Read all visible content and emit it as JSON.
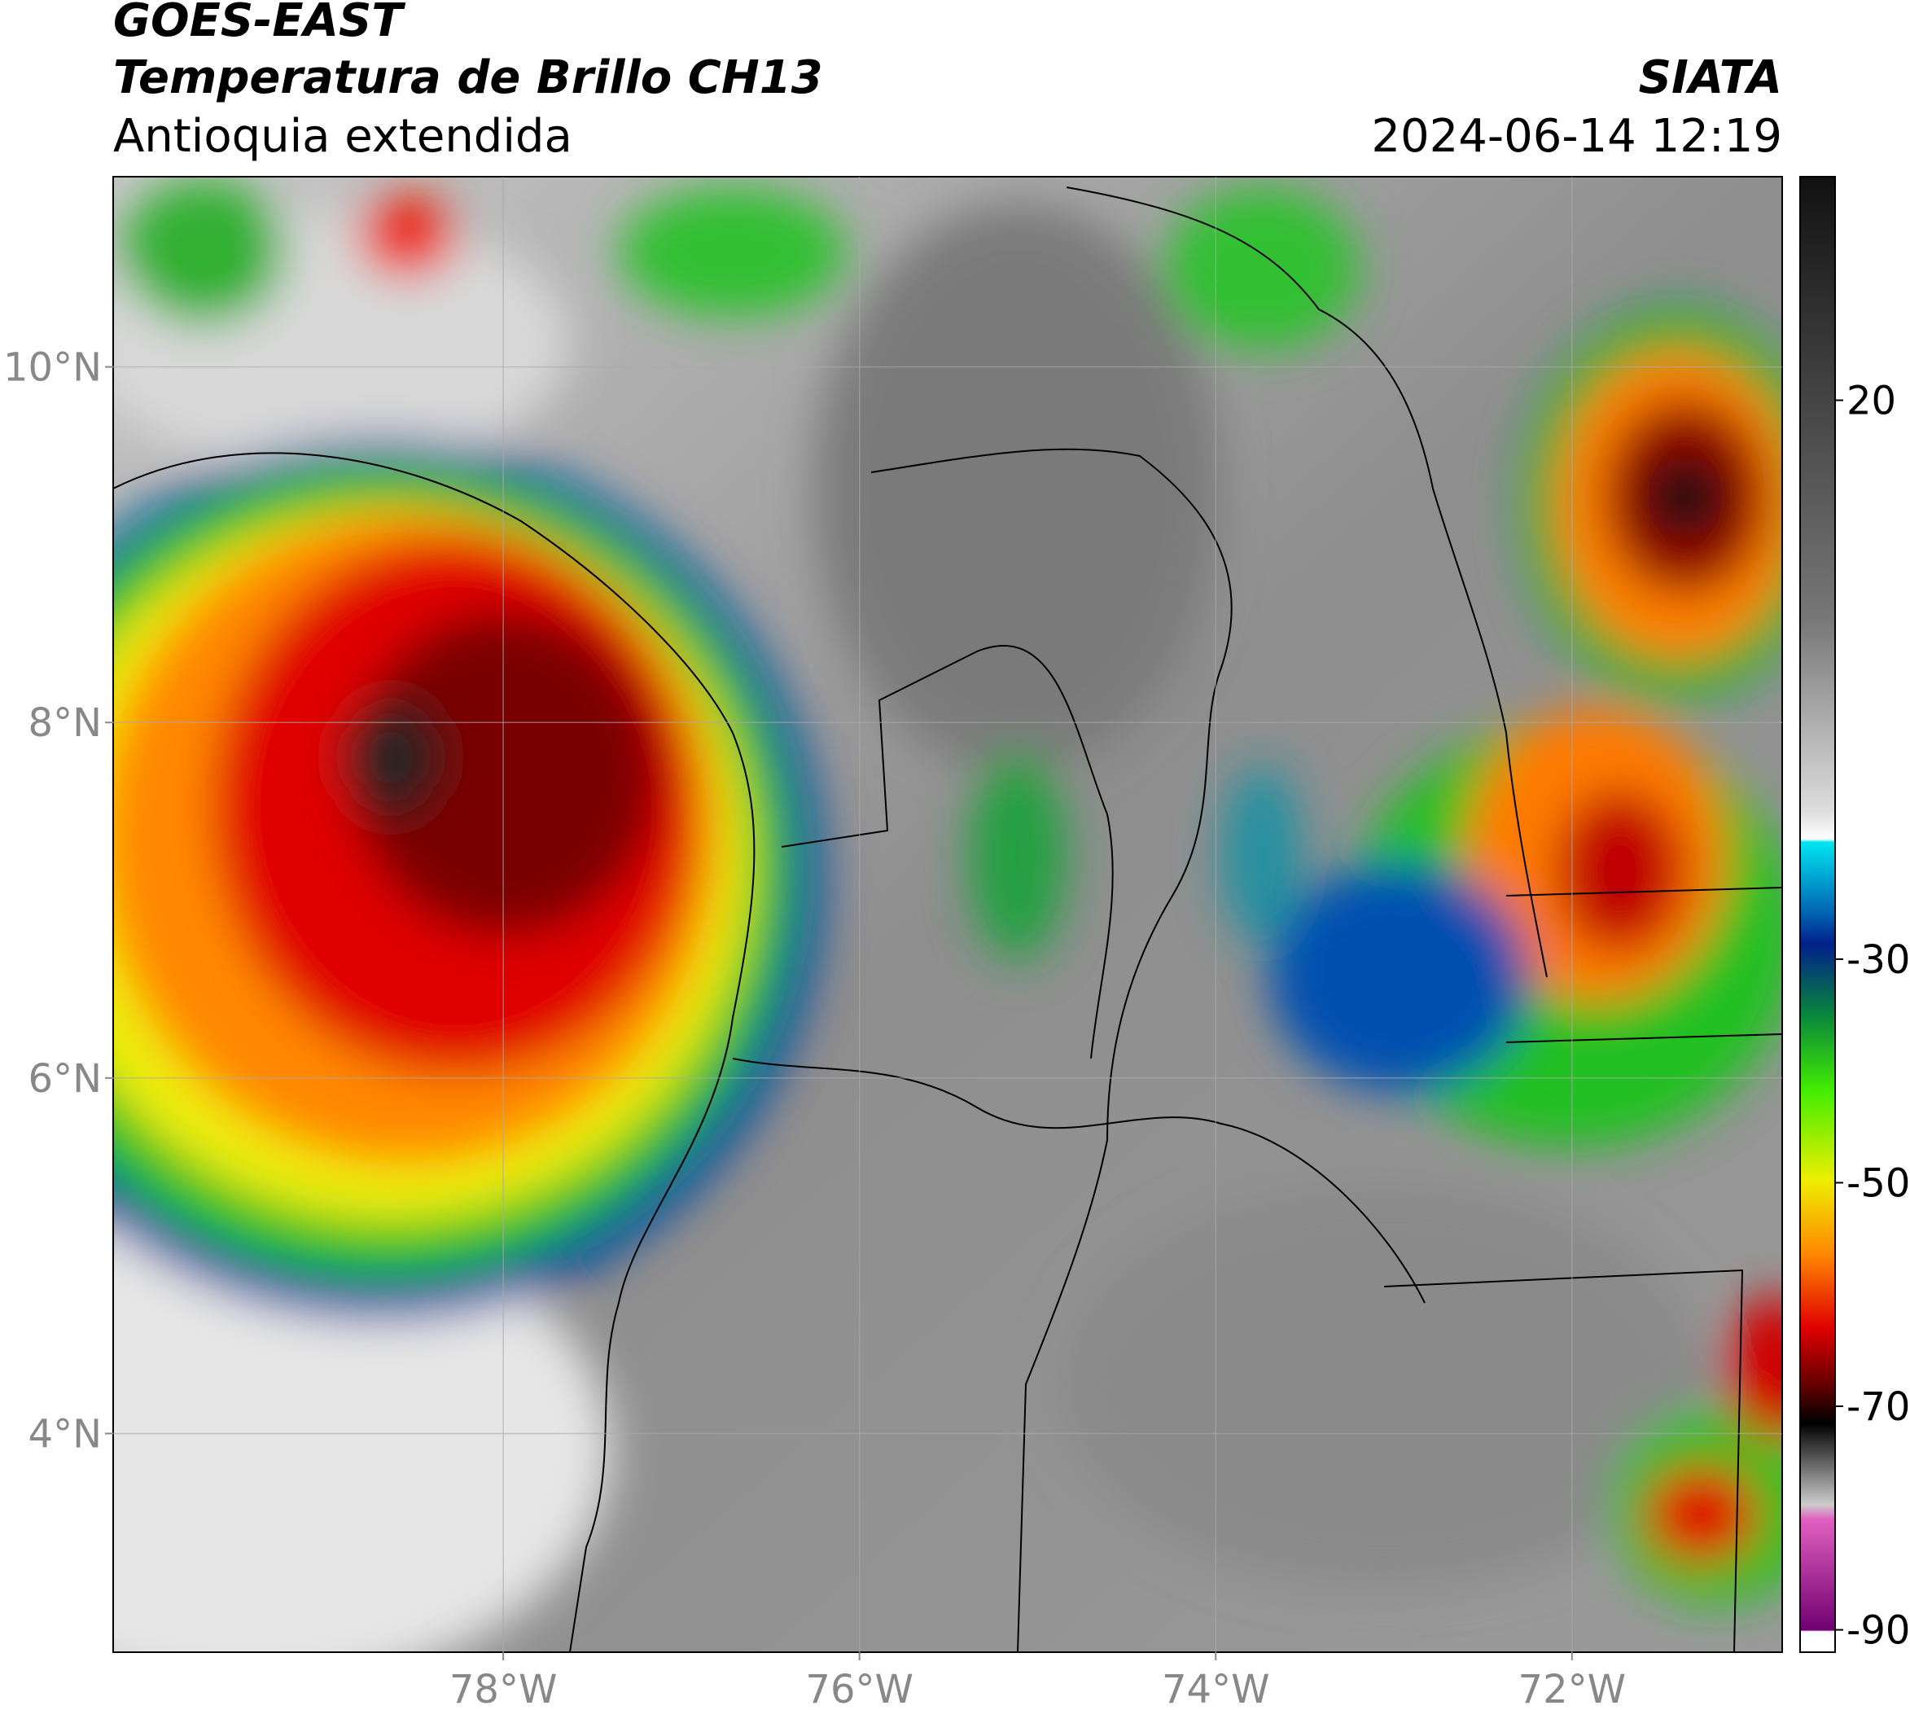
{
  "header": {
    "satellite": "GOES-EAST",
    "product": "Temperatura de Brillo CH13",
    "region": "Antioquia extendida",
    "source": "SIATA",
    "datetime": "2024-06-14 12:19"
  },
  "map": {
    "xlim": [
      -80.19,
      -70.82
    ],
    "ylim": [
      2.77,
      11.07
    ],
    "xticks": [
      {
        "value": -78,
        "label": "78°W"
      },
      {
        "value": -76,
        "label": "76°W"
      },
      {
        "value": -74,
        "label": "74°W"
      },
      {
        "value": -72,
        "label": "72°W"
      }
    ],
    "yticks": [
      {
        "value": 4,
        "label": "4°N"
      },
      {
        "value": 6,
        "label": "6°N"
      },
      {
        "value": 8,
        "label": "8°N"
      },
      {
        "value": 10,
        "label": "10°N"
      }
    ],
    "grid": true
  },
  "colorbar": {
    "lim": [
      -92,
      40
    ],
    "ticks": [
      20,
      -30,
      -50,
      -70,
      -90
    ]
  }
}
